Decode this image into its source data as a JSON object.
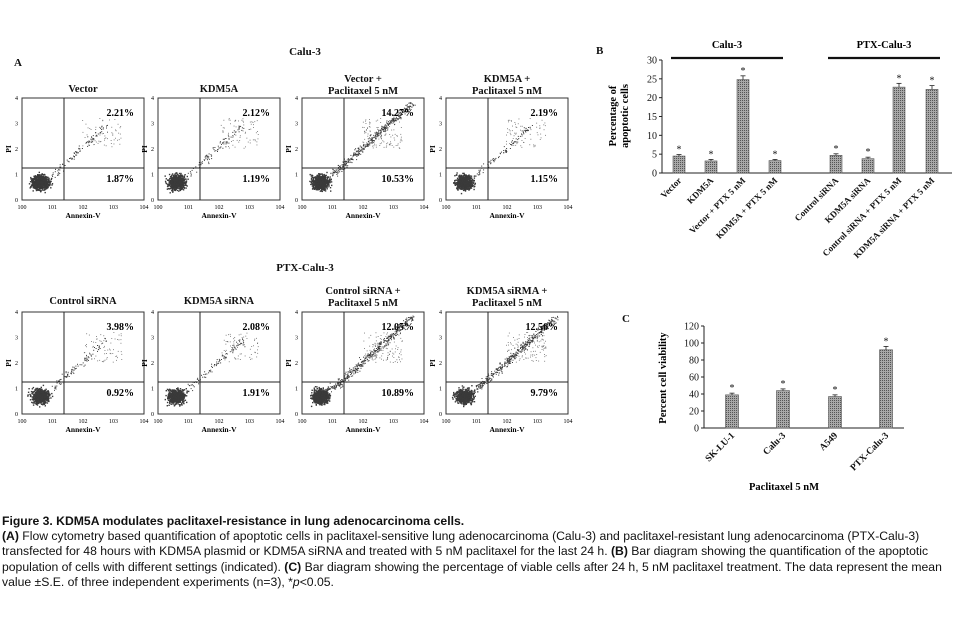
{
  "panelA": {
    "letter": "A",
    "group1_title": "Calu-3",
    "group2_title": "PTX-Calu-3",
    "x_axis_label": "Annexin-V",
    "y_axis_label": "PI",
    "plots": [
      {
        "title_line1": "Vector",
        "title_line2": "",
        "upper_right": "2.21%",
        "lower_right": "1.87%",
        "density": "low"
      },
      {
        "title_line1": "KDM5A",
        "title_line2": "",
        "upper_right": "2.12%",
        "lower_right": "1.19%",
        "density": "low"
      },
      {
        "title_line1": "Vector +",
        "title_line2": "Paclitaxel 5 nM",
        "upper_right": "14.27%",
        "lower_right": "10.53%",
        "density": "high"
      },
      {
        "title_line1": "KDM5A +",
        "title_line2": "Paclitaxel 5 nM",
        "upper_right": "2.19%",
        "lower_right": "1.15%",
        "density": "low"
      },
      {
        "title_line1": "Control siRNA",
        "title_line2": "",
        "upper_right": "3.98%",
        "lower_right": "0.92%",
        "density": "low"
      },
      {
        "title_line1": "KDM5A siRNA",
        "title_line2": "",
        "upper_right": "2.08%",
        "lower_right": "1.91%",
        "density": "low"
      },
      {
        "title_line1": "Control siRNA +",
        "title_line2": "Paclitaxel 5 nM",
        "upper_right": "12.05%",
        "lower_right": "10.89%",
        "density": "high"
      },
      {
        "title_line1": "KDM5A siRMA +",
        "title_line2": "Paclitaxel 5 nM",
        "upper_right": "12.56%",
        "lower_right": "9.79%",
        "density": "high"
      }
    ]
  },
  "chart_data": [
    {
      "panel": "B",
      "type": "bar",
      "groups": [
        "Calu-3",
        "PTX-Calu-3"
      ],
      "categories": [
        "Vector",
        "KDM5A",
        "Vector + PTX 5 nM",
        "KDM5A + PTX 5 nM",
        "Control siRNA",
        "KDM5A siRNA",
        "Control siRNA + PTX 5 nM",
        "KDM5A siRNA + PTX 5 nM"
      ],
      "values": [
        4.5,
        3.2,
        24.8,
        3.3,
        4.7,
        3.8,
        22.8,
        22.2
      ],
      "errors": [
        0.4,
        0.4,
        1.0,
        0.3,
        0.4,
        0.4,
        1.0,
        1.0
      ],
      "significance": [
        "*",
        "*",
        "*",
        "*",
        "*",
        "*",
        "*",
        "*"
      ],
      "ylabel": "Percentage of apoptotic cells",
      "ylim": [
        0,
        30
      ],
      "yticks": [
        0,
        5,
        10,
        15,
        20,
        25,
        30
      ]
    },
    {
      "panel": "C",
      "type": "bar",
      "categories": [
        "SK-LU-1",
        "Calu-3",
        "A549",
        "PTX-Calu-3"
      ],
      "values": [
        39,
        44,
        37,
        92
      ],
      "errors": [
        2,
        2,
        2,
        4
      ],
      "significance": [
        "*",
        "*",
        "*",
        "*"
      ],
      "ylabel": "Percent cell viability",
      "xlabel": "Paclitaxel 5 nM",
      "ylim": [
        0,
        120
      ],
      "yticks": [
        0,
        20,
        40,
        60,
        80,
        100,
        120
      ]
    }
  ],
  "caption": {
    "title": "Figure 3. KDM5A modulates paclitaxel-resistance in lung adenocarcinoma cells.",
    "lineA_label": "(A)",
    "lineA_text": " Flow cytometry based quantification of apoptotic cells in paclitaxel-sensitive lung adenocarcinoma (Calu-3) and paclitaxel-resistant lung adenocarcinoma (PTX-Calu-3) transfected for 48 hours with KDM5A plasmid or KDM5A siRNA and treated with 5 nM paclitaxel for the last 24 h. ",
    "lineB_label": "(B)",
    "lineB_text": " Bar diagram showing the quantification of the apoptotic population of cells with different settings (indicated). ",
    "lineC_label": "(C)",
    "lineC_text": " Bar diagram showing the percentage of viable cells after 24 h, 5 nM paclitaxel treatment. The data represent the mean value ±S.E. of three independent experiments (n=3), *",
    "p_italic": "p",
    "p_tail": "<0.05."
  },
  "colors": {
    "dots": "#3a3a3a",
    "bar": "#8c8c8c",
    "axis": "#222222"
  }
}
